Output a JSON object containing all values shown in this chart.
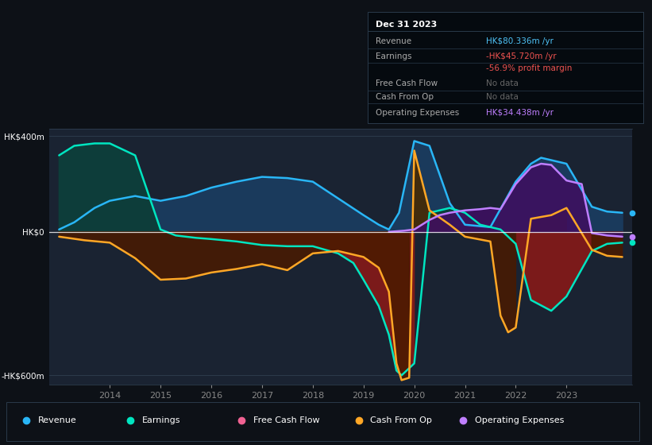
{
  "bg_color": "#111827",
  "plot_bg_color": "#1a2332",
  "outer_bg": "#0d1117",
  "title_box_bg": "#050a0f",
  "title_box": {
    "date": "Dec 31 2023",
    "rows": [
      {
        "label": "Revenue",
        "value": "HK$80.336m /yr",
        "value_color": "#4fc3f7"
      },
      {
        "label": "Earnings",
        "value": "-HK$45.720m /yr",
        "value_color": "#ef5350"
      },
      {
        "label": "",
        "value": "-56.9% profit margin",
        "value_color": "#ef5350"
      },
      {
        "label": "Free Cash Flow",
        "value": "No data",
        "value_color": "#666666"
      },
      {
        "label": "Cash From Op",
        "value": "No data",
        "value_color": "#666666"
      },
      {
        "label": "Operating Expenses",
        "value": "HK$34.438m /yr",
        "value_color": "#bf7fff"
      }
    ]
  },
  "ylim": [
    -640,
    430
  ],
  "ytick_vals": [
    400,
    0,
    -600
  ],
  "ytick_labels": [
    "HK$400m",
    "HK$0",
    "-HK$600m"
  ],
  "xlim": [
    2012.8,
    2024.3
  ],
  "xticks": [
    2014,
    2015,
    2016,
    2017,
    2018,
    2019,
    2020,
    2021,
    2022,
    2023
  ],
  "revenue_color": "#29b6f6",
  "earnings_color": "#00e5c0",
  "cashflow_color": "#f06292",
  "cashop_color": "#ffa726",
  "opex_color": "#bf7fff",
  "revenue_fill": "#1a3a5c",
  "earnings_fill_pos": "#0d3d3a",
  "earnings_fill_neg": "#7b1a1a",
  "cashop_fill_neg": "#4a1a00",
  "opex_fill": "#3d1060",
  "revenue": {
    "x": [
      2013.0,
      2013.3,
      2013.7,
      2014.0,
      2014.5,
      2015.0,
      2015.5,
      2016.0,
      2016.5,
      2017.0,
      2017.5,
      2018.0,
      2018.5,
      2019.0,
      2019.3,
      2019.5,
      2019.7,
      2019.85,
      2020.0,
      2020.3,
      2020.7,
      2021.0,
      2021.5,
      2022.0,
      2022.3,
      2022.5,
      2022.8,
      2023.0,
      2023.5,
      2023.8,
      2024.1
    ],
    "y": [
      10,
      40,
      100,
      130,
      150,
      130,
      150,
      185,
      210,
      230,
      225,
      210,
      140,
      70,
      30,
      10,
      80,
      230,
      380,
      360,
      120,
      30,
      20,
      210,
      285,
      310,
      295,
      285,
      105,
      85,
      80
    ]
  },
  "earnings": {
    "x": [
      2013.0,
      2013.3,
      2013.7,
      2014.0,
      2014.5,
      2015.0,
      2015.3,
      2015.7,
      2016.0,
      2016.5,
      2017.0,
      2017.5,
      2018.0,
      2018.5,
      2018.8,
      2019.0,
      2019.3,
      2019.5,
      2019.65,
      2019.75,
      2020.0,
      2020.3,
      2020.7,
      2021.0,
      2021.3,
      2021.7,
      2022.0,
      2022.3,
      2022.7,
      2023.0,
      2023.5,
      2023.8,
      2024.1
    ],
    "y": [
      320,
      360,
      370,
      370,
      320,
      10,
      -15,
      -25,
      -30,
      -40,
      -55,
      -60,
      -60,
      -90,
      -130,
      -200,
      -310,
      -430,
      -580,
      -600,
      -550,
      80,
      100,
      80,
      30,
      10,
      -50,
      -285,
      -330,
      -270,
      -80,
      -50,
      -45
    ]
  },
  "cashop": {
    "x": [
      2013.0,
      2013.5,
      2014.0,
      2014.5,
      2015.0,
      2015.5,
      2016.0,
      2016.5,
      2017.0,
      2017.5,
      2018.0,
      2018.5,
      2019.0,
      2019.3,
      2019.5,
      2019.65,
      2019.75,
      2019.9,
      2020.0,
      2020.3,
      2020.7,
      2021.0,
      2021.5,
      2021.7,
      2021.85,
      2022.0,
      2022.3,
      2022.7,
      2023.0,
      2023.5,
      2023.8,
      2024.1
    ],
    "y": [
      -20,
      -35,
      -45,
      -110,
      -200,
      -195,
      -170,
      -155,
      -135,
      -160,
      -90,
      -80,
      -105,
      -150,
      -250,
      -550,
      -620,
      -610,
      340,
      90,
      30,
      -20,
      -40,
      -350,
      -420,
      -400,
      55,
      70,
      100,
      -75,
      -100,
      -105
    ]
  },
  "opex": {
    "x": [
      2019.5,
      2019.8,
      2020.0,
      2020.3,
      2020.5,
      2020.7,
      2021.0,
      2021.3,
      2021.5,
      2021.7,
      2022.0,
      2022.3,
      2022.5,
      2022.7,
      2023.0,
      2023.3,
      2023.5,
      2023.8,
      2024.1
    ],
    "y": [
      0,
      5,
      10,
      50,
      70,
      80,
      90,
      95,
      100,
      95,
      200,
      270,
      285,
      280,
      215,
      200,
      -5,
      -15,
      -20
    ]
  },
  "legend_items": [
    {
      "label": "Revenue",
      "color": "#29b6f6"
    },
    {
      "label": "Earnings",
      "color": "#00e5c0"
    },
    {
      "label": "Free Cash Flow",
      "color": "#f06292"
    },
    {
      "label": "Cash From Op",
      "color": "#ffa726"
    },
    {
      "label": "Operating Expenses",
      "color": "#bf7fff"
    }
  ]
}
